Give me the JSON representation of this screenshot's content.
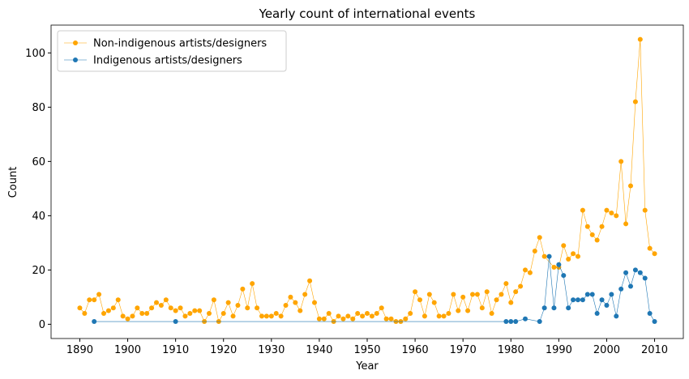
{
  "chart_data": {
    "type": "line",
    "title": "Yearly count of international events",
    "x_label": "Year",
    "y_label": "Count",
    "xlim": [
      1884,
      2016
    ],
    "ylim": [
      -5.25,
      110.25
    ],
    "xticks": [
      1890,
      1900,
      1910,
      1920,
      1930,
      1940,
      1950,
      1960,
      1970,
      1980,
      1990,
      2000,
      2010
    ],
    "yticks": [
      0,
      20,
      40,
      60,
      80,
      100
    ],
    "legend": "upper left",
    "grid": false,
    "series": [
      {
        "name": "Non-indigenous artists/designers",
        "color": "#ffa500",
        "x": [
          1890,
          1891,
          1892,
          1893,
          1894,
          1895,
          1896,
          1897,
          1898,
          1899,
          1900,
          1901,
          1902,
          1903,
          1904,
          1905,
          1906,
          1907,
          1908,
          1909,
          1910,
          1911,
          1912,
          1913,
          1914,
          1915,
          1916,
          1917,
          1918,
          1919,
          1920,
          1921,
          1922,
          1923,
          1924,
          1925,
          1926,
          1927,
          1928,
          1929,
          1930,
          1931,
          1932,
          1933,
          1934,
          1935,
          1936,
          1937,
          1938,
          1939,
          1940,
          1941,
          1942,
          1943,
          1944,
          1945,
          1946,
          1947,
          1948,
          1949,
          1950,
          1951,
          1952,
          1953,
          1954,
          1955,
          1956,
          1957,
          1958,
          1959,
          1960,
          1961,
          1962,
          1963,
          1964,
          1965,
          1966,
          1967,
          1968,
          1969,
          1970,
          1971,
          1972,
          1973,
          1974,
          1975,
          1976,
          1977,
          1978,
          1979,
          1980,
          1981,
          1982,
          1983,
          1984,
          1985,
          1986,
          1987,
          1989,
          1990,
          1991,
          1992,
          1993,
          1994,
          1995,
          1996,
          1997,
          1998,
          1999,
          2000,
          2001,
          2002,
          2003,
          2004,
          2005,
          2006,
          2007,
          2008,
          2009,
          2010
        ],
        "values": [
          6,
          4,
          9,
          9,
          11,
          4,
          5,
          6,
          9,
          3,
          2,
          3,
          6,
          4,
          4,
          6,
          8,
          7,
          9,
          6,
          5,
          6,
          3,
          4,
          5,
          5,
          1,
          4,
          9,
          1,
          4,
          8,
          3,
          7,
          13,
          6,
          15,
          6,
          3,
          3,
          3,
          4,
          3,
          7,
          10,
          8,
          5,
          11,
          16,
          8,
          2,
          2,
          4,
          1,
          3,
          2,
          3,
          2,
          4,
          3,
          4,
          3,
          4,
          6,
          2,
          2,
          1,
          1,
          2,
          4,
          12,
          9,
          3,
          11,
          8,
          3,
          3,
          4,
          11,
          5,
          10,
          5,
          11,
          11,
          6,
          12,
          4,
          9,
          11,
          15,
          8,
          12,
          14,
          20,
          19,
          27,
          32,
          25,
          21,
          21,
          29,
          24,
          26,
          25,
          42,
          36,
          33,
          31,
          36,
          42,
          41,
          40,
          60,
          37,
          51,
          82,
          105,
          42,
          28,
          26
        ]
      },
      {
        "name": "Indigenous artists/designers",
        "color": "#1f77b4",
        "x": [
          1893,
          1910,
          1979,
          1980,
          1981,
          1983,
          1986,
          1987,
          1988,
          1989,
          1990,
          1991,
          1992,
          1993,
          1994,
          1995,
          1996,
          1997,
          1998,
          1999,
          2000,
          2001,
          2002,
          2003,
          2004,
          2005,
          2006,
          2007,
          2008,
          2009,
          2010
        ],
        "values": [
          1,
          1,
          1,
          1,
          1,
          2,
          1,
          6,
          25,
          6,
          22,
          18,
          6,
          9,
          9,
          9,
          11,
          11,
          4,
          9,
          7,
          11,
          3,
          13,
          19,
          14,
          20,
          19,
          17,
          4,
          1
        ]
      }
    ]
  }
}
